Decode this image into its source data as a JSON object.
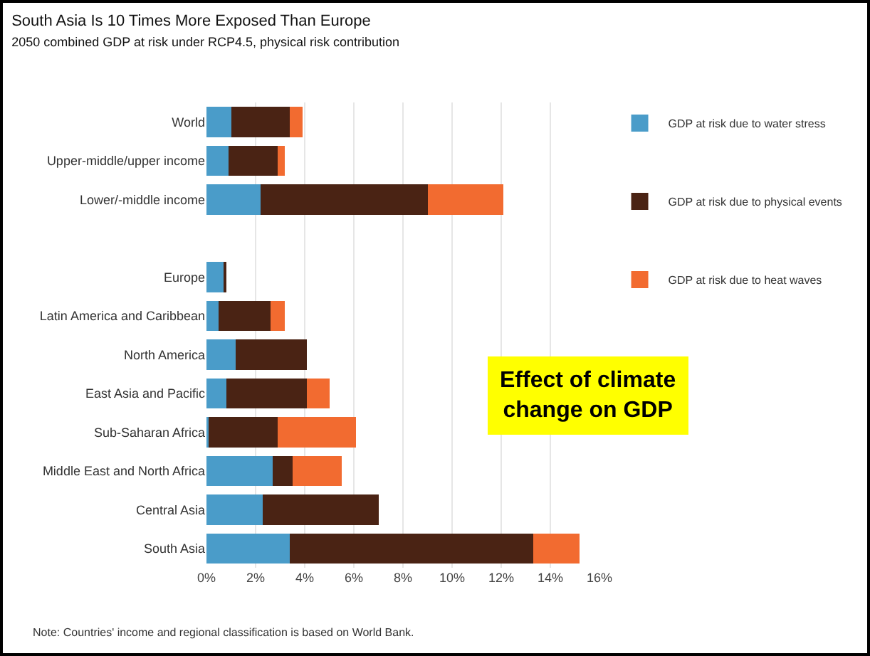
{
  "chart_data": {
    "type": "bar",
    "orientation": "horizontal",
    "stacked": true,
    "title": "South Asia Is 10 Times More Exposed Than Europe",
    "subtitle": "2050 combined GDP at risk under RCP4.5, physical risk contribution",
    "categories": [
      "World",
      "Upper-middle/upper income",
      "Lower/-middle income",
      null,
      "Europe",
      "Latin America and Caribbean",
      "North America",
      "East Asia and Pacific",
      "Sub-Saharan Africa",
      "Middle East and North Africa",
      "Central Asia",
      "South Asia"
    ],
    "series": [
      {
        "name": "GDP at risk due to water stress",
        "color": "#4a9cc9",
        "values": [
          1.0,
          0.9,
          2.2,
          null,
          0.7,
          0.5,
          1.2,
          0.8,
          0.1,
          2.7,
          2.3,
          3.4
        ]
      },
      {
        "name": "GDP at risk due to physical events",
        "color": "#4a2314",
        "values": [
          2.4,
          2.0,
          6.8,
          null,
          0.1,
          2.1,
          2.9,
          3.3,
          2.8,
          0.8,
          4.7,
          9.9
        ]
      },
      {
        "name": "GDP at risk due to heat waves",
        "color": "#f26b30",
        "values": [
          0.5,
          0.3,
          3.1,
          null,
          0,
          0.6,
          0,
          0.9,
          3.2,
          2.0,
          0,
          1.9
        ]
      }
    ],
    "xlim": [
      0,
      16
    ],
    "xticks": [
      {
        "value": 0,
        "label": "0%"
      },
      {
        "value": 2,
        "label": "2%"
      },
      {
        "value": 4,
        "label": "4%"
      },
      {
        "value": 6,
        "label": "6%"
      },
      {
        "value": 8,
        "label": "8%"
      },
      {
        "value": 10,
        "label": "10%"
      },
      {
        "value": 12,
        "label": "12%"
      },
      {
        "value": 14,
        "label": "14%"
      },
      {
        "value": 16,
        "label": "16%"
      }
    ],
    "grid": "x",
    "legend": "right",
    "annotations": [
      "Effect of climate change on GDP",
      "Note: Countries' income and regional classification is based on World Bank."
    ]
  }
}
